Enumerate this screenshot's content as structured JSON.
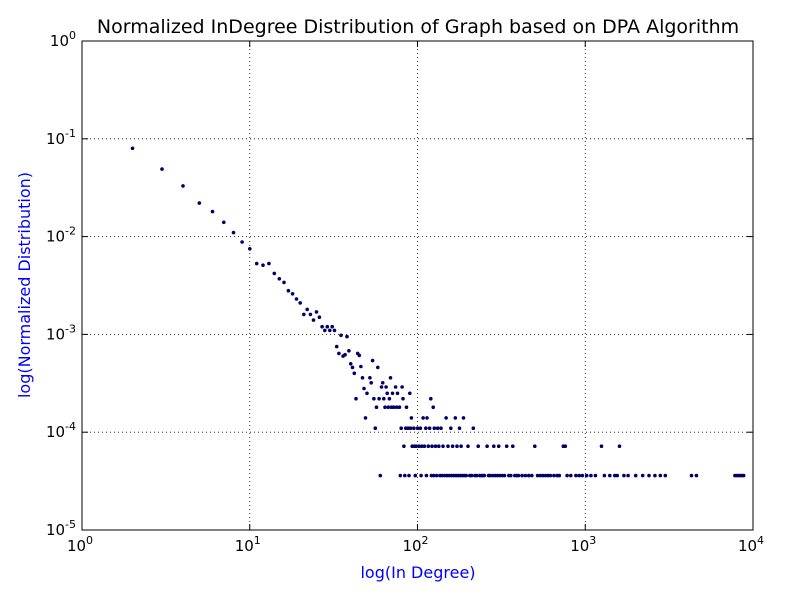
{
  "chart_data": {
    "type": "scatter",
    "title": "Normalized InDegree Distribution of Graph based on DPA Algorithm",
    "xlabel": "log(In Degree)",
    "ylabel": "log(Normalized Distribution)",
    "xscale": "log",
    "yscale": "log",
    "xlim": [
      1,
      10000
    ],
    "ylim": [
      1e-05,
      1
    ],
    "grid": true,
    "x_ticks": [
      {
        "value": 1,
        "base": "10",
        "exp": "0"
      },
      {
        "value": 10,
        "base": "10",
        "exp": "1"
      },
      {
        "value": 100,
        "base": "10",
        "exp": "2"
      },
      {
        "value": 1000,
        "base": "10",
        "exp": "3"
      },
      {
        "value": 10000,
        "base": "10",
        "exp": "4"
      }
    ],
    "y_ticks": [
      {
        "value": 1,
        "base": "10",
        "exp": "0"
      },
      {
        "value": 0.1,
        "base": "10",
        "exp": "-1"
      },
      {
        "value": 0.01,
        "base": "10",
        "exp": "-2"
      },
      {
        "value": 0.001,
        "base": "10",
        "exp": "-3"
      },
      {
        "value": 0.0001,
        "base": "10",
        "exp": "-4"
      },
      {
        "value": 1e-05,
        "base": "10",
        "exp": "-5"
      }
    ],
    "colors": {
      "points": "#000066",
      "labels": "#0000ff",
      "text": "#000000",
      "grid": "#000000"
    },
    "points": [
      [
        2,
        0.08
      ],
      [
        3,
        0.049
      ],
      [
        4,
        0.033
      ],
      [
        5,
        0.022
      ],
      [
        6,
        0.018
      ],
      [
        7,
        0.014
      ],
      [
        8,
        0.011
      ],
      [
        9,
        0.0088
      ],
      [
        10,
        0.0075
      ],
      [
        11,
        0.0053
      ],
      [
        12,
        0.0051
      ],
      [
        13,
        0.0053
      ],
      [
        14,
        0.0042
      ],
      [
        15,
        0.0037
      ],
      [
        16,
        0.0034
      ],
      [
        17,
        0.0028
      ],
      [
        18,
        0.0026
      ],
      [
        19,
        0.0023
      ],
      [
        20,
        0.0021
      ],
      [
        21,
        0.0016
      ],
      [
        22,
        0.0018
      ],
      [
        23,
        0.0016
      ],
      [
        24,
        0.0014
      ],
      [
        25,
        0.0017
      ],
      [
        26,
        0.0015
      ],
      [
        27,
        0.0012
      ],
      [
        28,
        0.0011
      ],
      [
        29,
        0.0012
      ],
      [
        30,
        0.0011
      ],
      [
        31,
        0.0012
      ],
      [
        32,
        0.0011
      ],
      [
        33,
        0.00075
      ],
      [
        34,
        0.00064
      ],
      [
        35,
        0.00098
      ],
      [
        36,
        0.0006
      ],
      [
        37,
        0.00062
      ],
      [
        38,
        0.00095
      ],
      [
        39,
        0.00068
      ],
      [
        40,
        0.0005
      ],
      [
        41,
        0.00046
      ],
      [
        42,
        0.0004
      ],
      [
        43,
        0.00022
      ],
      [
        44,
        0.00064
      ],
      [
        45,
        0.00061
      ],
      [
        46,
        0.00047
      ],
      [
        47,
        0.00036
      ],
      [
        48,
        0.00028
      ],
      [
        49,
        0.00014
      ],
      [
        50,
        0.00025
      ],
      [
        52,
        0.00036
      ],
      [
        53,
        0.00032
      ],
      [
        54,
        0.00054
      ],
      [
        55,
        0.00022
      ],
      [
        56,
        0.00011
      ],
      [
        57,
        0.00018
      ],
      [
        58,
        0.00046
      ],
      [
        59,
        0.00022
      ],
      [
        60,
        3.6e-05
      ],
      [
        61,
        0.00029
      ],
      [
        62,
        0.00032
      ],
      [
        63,
        0.00022
      ],
      [
        64,
        0.00018
      ],
      [
        65,
        0.00029
      ],
      [
        66,
        0.00025
      ],
      [
        67,
        0.00018
      ],
      [
        68,
        0.00022
      ],
      [
        69,
        0.00036
      ],
      [
        70,
        0.00018
      ],
      [
        71,
        0.00025
      ],
      [
        72,
        0.00018
      ],
      [
        74,
        0.00029
      ],
      [
        75,
        0.00018
      ],
      [
        76,
        0.00025
      ],
      [
        78,
        0.00018
      ],
      [
        79,
        3.6e-05
      ],
      [
        80,
        0.00011
      ],
      [
        81,
        0.00029
      ],
      [
        82,
        0.00022
      ],
      [
        83,
        7.2e-05
      ],
      [
        84,
        3.6e-05
      ],
      [
        85,
        0.00011
      ],
      [
        86,
        0.00018
      ],
      [
        88,
        0.00011
      ],
      [
        89,
        3.6e-05
      ],
      [
        90,
        0.00025
      ],
      [
        91,
        0.00011
      ],
      [
        92,
        0.00014
      ],
      [
        93,
        7.2e-05
      ],
      [
        95,
        0.00011
      ],
      [
        96,
        7.2e-05
      ],
      [
        97,
        3.6e-05
      ],
      [
        98,
        7.2e-05
      ],
      [
        100,
        0.00011
      ],
      [
        102,
        7.2e-05
      ],
      [
        104,
        0.00011
      ],
      [
        105,
        3.6e-05
      ],
      [
        106,
        7.2e-05
      ],
      [
        108,
        0.00014
      ],
      [
        110,
        7.2e-05
      ],
      [
        112,
        0.00011
      ],
      [
        113,
        3.6e-05
      ],
      [
        114,
        0.00014
      ],
      [
        116,
        7.2e-05
      ],
      [
        118,
        0.00011
      ],
      [
        120,
        0.00022
      ],
      [
        121,
        3.6e-05
      ],
      [
        122,
        7.2e-05
      ],
      [
        124,
        0.00018
      ],
      [
        125,
        3.6e-05
      ],
      [
        126,
        0.00011
      ],
      [
        128,
        7.2e-05
      ],
      [
        130,
        3.6e-05
      ],
      [
        132,
        0.00011
      ],
      [
        134,
        7.2e-05
      ],
      [
        136,
        3.6e-05
      ],
      [
        138,
        0.00011
      ],
      [
        140,
        3.6e-05
      ],
      [
        142,
        7.2e-05
      ],
      [
        145,
        3.6e-05
      ],
      [
        148,
        0.00014
      ],
      [
        150,
        3.6e-05
      ],
      [
        152,
        7.2e-05
      ],
      [
        155,
        3.6e-05
      ],
      [
        158,
        0.00011
      ],
      [
        160,
        3.6e-05
      ],
      [
        162,
        7.2e-05
      ],
      [
        165,
        3.6e-05
      ],
      [
        168,
        0.00014
      ],
      [
        170,
        3.6e-05
      ],
      [
        172,
        7.2e-05
      ],
      [
        175,
        3.6e-05
      ],
      [
        178,
        0.00011
      ],
      [
        180,
        3.6e-05
      ],
      [
        182,
        7.2e-05
      ],
      [
        185,
        3.6e-05
      ],
      [
        188,
        0.00014
      ],
      [
        190,
        3.6e-05
      ],
      [
        195,
        3.6e-05
      ],
      [
        200,
        7.2e-05
      ],
      [
        205,
        3.6e-05
      ],
      [
        210,
        3.6e-05
      ],
      [
        215,
        0.00011
      ],
      [
        220,
        3.6e-05
      ],
      [
        225,
        3.6e-05
      ],
      [
        230,
        7.2e-05
      ],
      [
        235,
        3.6e-05
      ],
      [
        240,
        3.6e-05
      ],
      [
        245,
        3.6e-05
      ],
      [
        250,
        3.6e-05
      ],
      [
        260,
        7.2e-05
      ],
      [
        265,
        3.6e-05
      ],
      [
        270,
        3.6e-05
      ],
      [
        280,
        3.6e-05
      ],
      [
        285,
        7.2e-05
      ],
      [
        290,
        3.6e-05
      ],
      [
        300,
        3.6e-05
      ],
      [
        305,
        7.2e-05
      ],
      [
        310,
        3.6e-05
      ],
      [
        320,
        3.6e-05
      ],
      [
        330,
        3.6e-05
      ],
      [
        340,
        7.2e-05
      ],
      [
        350,
        3.6e-05
      ],
      [
        360,
        3.6e-05
      ],
      [
        370,
        7.2e-05
      ],
      [
        380,
        3.6e-05
      ],
      [
        390,
        3.6e-05
      ],
      [
        400,
        3.6e-05
      ],
      [
        420,
        3.6e-05
      ],
      [
        440,
        3.6e-05
      ],
      [
        460,
        3.6e-05
      ],
      [
        480,
        3.6e-05
      ],
      [
        500,
        7.2e-05
      ],
      [
        520,
        3.6e-05
      ],
      [
        540,
        3.6e-05
      ],
      [
        560,
        3.6e-05
      ],
      [
        580,
        3.6e-05
      ],
      [
        600,
        3.6e-05
      ],
      [
        620,
        3.6e-05
      ],
      [
        650,
        3.6e-05
      ],
      [
        680,
        3.6e-05
      ],
      [
        700,
        3.6e-05
      ],
      [
        740,
        7.2e-05
      ],
      [
        760,
        7.2e-05
      ],
      [
        780,
        3.6e-05
      ],
      [
        820,
        3.6e-05
      ],
      [
        880,
        3.6e-05
      ],
      [
        920,
        3.6e-05
      ],
      [
        960,
        3.6e-05
      ],
      [
        1020,
        3.6e-05
      ],
      [
        1080,
        3.6e-05
      ],
      [
        1150,
        3.6e-05
      ],
      [
        1250,
        7.2e-05
      ],
      [
        1300,
        3.6e-05
      ],
      [
        1400,
        3.6e-05
      ],
      [
        1500,
        3.6e-05
      ],
      [
        1550,
        3.6e-05
      ],
      [
        1600,
        7.2e-05
      ],
      [
        1700,
        3.6e-05
      ],
      [
        1800,
        3.6e-05
      ],
      [
        2000,
        3.6e-05
      ],
      [
        2200,
        3.6e-05
      ],
      [
        2400,
        3.6e-05
      ],
      [
        2600,
        3.6e-05
      ],
      [
        2800,
        3.6e-05
      ],
      [
        3000,
        3.6e-05
      ],
      [
        4300,
        3.6e-05
      ],
      [
        4600,
        3.6e-05
      ],
      [
        7800,
        3.6e-05
      ],
      [
        8000,
        3.6e-05
      ],
      [
        8200,
        3.6e-05
      ],
      [
        8400,
        3.6e-05
      ],
      [
        8600,
        3.6e-05
      ],
      [
        8800,
        3.6e-05
      ]
    ]
  }
}
